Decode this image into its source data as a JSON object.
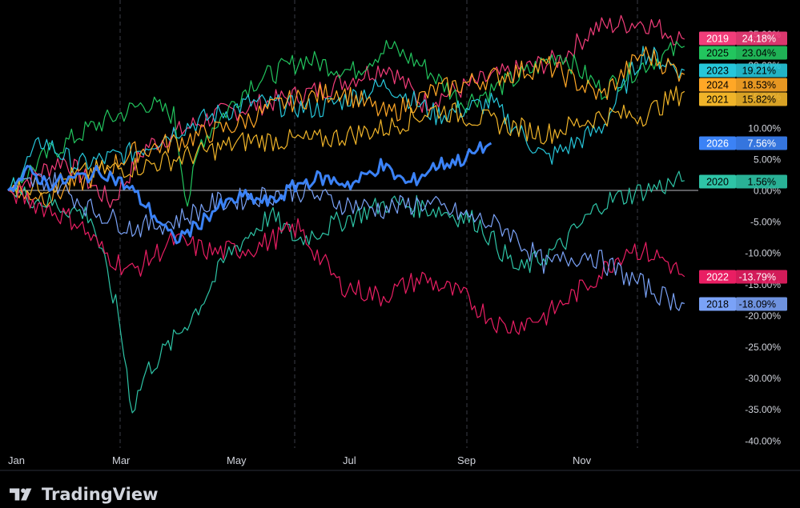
{
  "brand": {
    "name": "TradingView"
  },
  "chart_data": {
    "type": "line",
    "x_tick_labels": [
      "Jan",
      "Mar",
      "May",
      "Jul",
      "Sep",
      "Nov"
    ],
    "y_tick_labels": [
      "10.00%",
      "5.00%",
      "0.00%",
      "-5.00%",
      "-10.00%",
      "-15.00%",
      "-20.00%",
      "-25.00%",
      "-30.00%",
      "-35.00%",
      "-40.00%"
    ],
    "ylim": [
      -40,
      30
    ],
    "grid": "vertical dashed",
    "zero_line": true,
    "series": [
      {
        "name": "2019",
        "final": "24.18%",
        "color": "#f23d7a",
        "points": [
          [
            0,
            0
          ],
          [
            0.08,
            5
          ],
          [
            0.15,
            -2
          ],
          [
            0.2,
            7
          ],
          [
            0.3,
            12
          ],
          [
            0.45,
            16
          ],
          [
            0.55,
            20
          ],
          [
            0.6,
            14
          ],
          [
            0.7,
            18
          ],
          [
            0.8,
            21
          ],
          [
            0.85,
            26
          ],
          [
            0.92,
            27
          ],
          [
            0.98,
            24.18
          ]
        ]
      },
      {
        "name": "2025",
        "final": "23.04%",
        "color": "#22c55e",
        "points": [
          [
            0,
            0
          ],
          [
            0.06,
            6
          ],
          [
            0.12,
            10
          ],
          [
            0.2,
            14
          ],
          [
            0.24,
            12
          ],
          [
            0.26,
            -2
          ],
          [
            0.28,
            8
          ],
          [
            0.35,
            17
          ],
          [
            0.43,
            21
          ],
          [
            0.5,
            19
          ],
          [
            0.55,
            23
          ],
          [
            0.6,
            20
          ],
          [
            0.66,
            14
          ],
          [
            0.74,
            18
          ],
          [
            0.8,
            22
          ],
          [
            0.86,
            16
          ],
          [
            0.92,
            20
          ],
          [
            0.98,
            23.04
          ]
        ]
      },
      {
        "name": "2023",
        "final": "19.21%",
        "color": "#26c6da",
        "points": [
          [
            0,
            0
          ],
          [
            0.05,
            8
          ],
          [
            0.1,
            4
          ],
          [
            0.18,
            6
          ],
          [
            0.25,
            10
          ],
          [
            0.35,
            14
          ],
          [
            0.45,
            13
          ],
          [
            0.55,
            17
          ],
          [
            0.62,
            12
          ],
          [
            0.7,
            14
          ],
          [
            0.78,
            5
          ],
          [
            0.86,
            10
          ],
          [
            0.92,
            22
          ],
          [
            0.98,
            19.21
          ]
        ]
      },
      {
        "name": "2024",
        "final": "18.53%",
        "color": "#ffa726",
        "points": [
          [
            0,
            0
          ],
          [
            0.06,
            -1
          ],
          [
            0.12,
            2
          ],
          [
            0.18,
            6
          ],
          [
            0.25,
            8
          ],
          [
            0.32,
            10
          ],
          [
            0.4,
            14
          ],
          [
            0.48,
            16
          ],
          [
            0.55,
            12
          ],
          [
            0.62,
            16
          ],
          [
            0.7,
            18
          ],
          [
            0.78,
            20
          ],
          [
            0.86,
            15
          ],
          [
            0.92,
            22
          ],
          [
            0.98,
            18.53
          ]
        ]
      },
      {
        "name": "2021",
        "final": "15.82%",
        "color": "#f0b429",
        "points": [
          [
            0,
            0
          ],
          [
            0.06,
            1
          ],
          [
            0.12,
            3
          ],
          [
            0.2,
            4
          ],
          [
            0.28,
            6
          ],
          [
            0.35,
            8
          ],
          [
            0.45,
            8
          ],
          [
            0.55,
            10
          ],
          [
            0.62,
            13
          ],
          [
            0.7,
            11
          ],
          [
            0.78,
            9
          ],
          [
            0.86,
            12
          ],
          [
            0.92,
            12
          ],
          [
            0.98,
            15.82
          ]
        ]
      },
      {
        "name": "2026",
        "final": "7.56%",
        "color": "#3b82f6",
        "bold": true,
        "points": [
          [
            0,
            0
          ],
          [
            0.03,
            3
          ],
          [
            0.06,
            1
          ],
          [
            0.1,
            2
          ],
          [
            0.14,
            3
          ],
          [
            0.18,
            0
          ],
          [
            0.22,
            -5
          ],
          [
            0.24,
            -8
          ],
          [
            0.27,
            -6
          ],
          [
            0.3,
            -3
          ],
          [
            0.34,
            -1
          ],
          [
            0.38,
            -2
          ],
          [
            0.42,
            1
          ],
          [
            0.45,
            2
          ],
          [
            0.5,
            1
          ],
          [
            0.54,
            4
          ],
          [
            0.58,
            1
          ],
          [
            0.62,
            4
          ],
          [
            0.66,
            5
          ],
          [
            0.7,
            7.56
          ]
        ]
      },
      {
        "name": "2020",
        "final": "1.56%",
        "color": "#2ec4a6",
        "points": [
          [
            0,
            0
          ],
          [
            0.06,
            -2
          ],
          [
            0.12,
            -4
          ],
          [
            0.16,
            -20
          ],
          [
            0.18,
            -35
          ],
          [
            0.2,
            -29
          ],
          [
            0.24,
            -24
          ],
          [
            0.28,
            -18
          ],
          [
            0.32,
            -10
          ],
          [
            0.38,
            -4
          ],
          [
            0.42,
            -8
          ],
          [
            0.48,
            -5
          ],
          [
            0.55,
            -2
          ],
          [
            0.62,
            -3
          ],
          [
            0.68,
            -5
          ],
          [
            0.74,
            -13
          ],
          [
            0.8,
            -9
          ],
          [
            0.86,
            -2
          ],
          [
            0.92,
            0
          ],
          [
            0.98,
            1.56
          ]
        ]
      },
      {
        "name": "2022",
        "final": "-13.79%",
        "color": "#e91e63",
        "points": [
          [
            0,
            0
          ],
          [
            0.06,
            -3
          ],
          [
            0.1,
            -5
          ],
          [
            0.14,
            -10
          ],
          [
            0.18,
            -13
          ],
          [
            0.24,
            -8
          ],
          [
            0.3,
            -10
          ],
          [
            0.36,
            -9
          ],
          [
            0.42,
            -6
          ],
          [
            0.48,
            -15
          ],
          [
            0.54,
            -17
          ],
          [
            0.6,
            -14
          ],
          [
            0.66,
            -17
          ],
          [
            0.72,
            -22
          ],
          [
            0.78,
            -20
          ],
          [
            0.84,
            -15
          ],
          [
            0.9,
            -9
          ],
          [
            0.95,
            -11
          ],
          [
            0.98,
            -13.79
          ]
        ]
      },
      {
        "name": "2018",
        "final": "-18.09%",
        "color": "#7aa2f7",
        "points": [
          [
            0,
            0
          ],
          [
            0.06,
            2
          ],
          [
            0.12,
            -3
          ],
          [
            0.18,
            -6
          ],
          [
            0.24,
            -5
          ],
          [
            0.3,
            -2
          ],
          [
            0.36,
            -1
          ],
          [
            0.42,
            0
          ],
          [
            0.48,
            -2
          ],
          [
            0.54,
            -3
          ],
          [
            0.6,
            -2
          ],
          [
            0.66,
            -4
          ],
          [
            0.72,
            -6
          ],
          [
            0.78,
            -12
          ],
          [
            0.84,
            -10
          ],
          [
            0.9,
            -14
          ],
          [
            0.95,
            -17
          ],
          [
            0.98,
            -18.09
          ]
        ]
      }
    ],
    "partial_labels": [
      "25.00%",
      "20.00%",
      "15.00%"
    ]
  }
}
